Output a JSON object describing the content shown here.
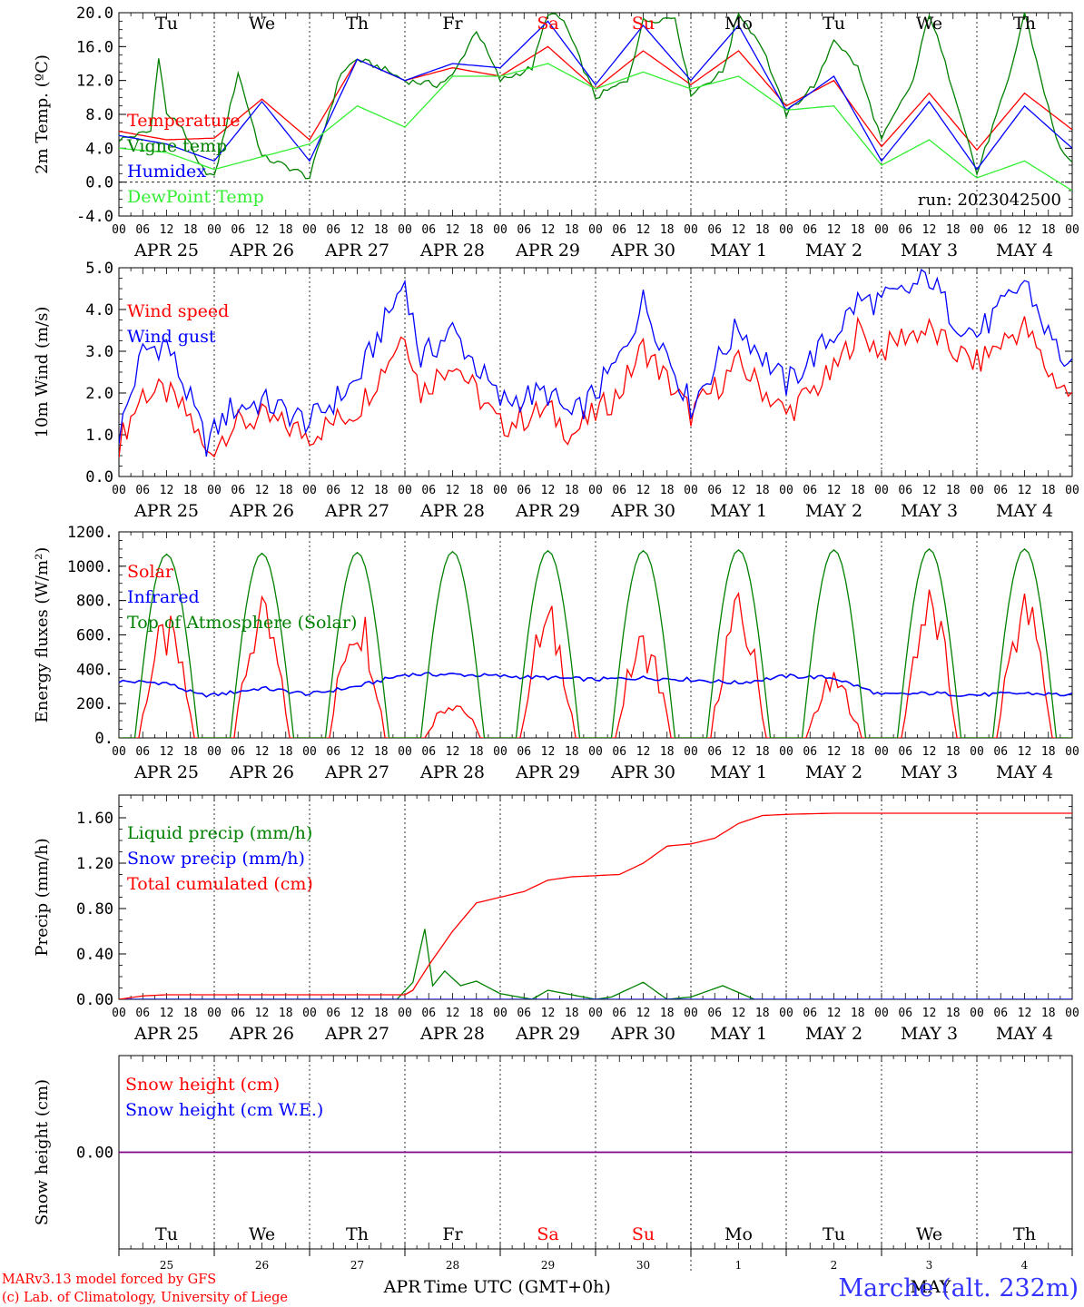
{
  "colors": {
    "red": "#ff0000",
    "green": "#008000",
    "blue": "#0000ff",
    "lime": "#33ee33",
    "purple": "#800080",
    "title": "#3333ff",
    "black": "#000000"
  },
  "days": [
    "APR 25",
    "APR 26",
    "APR 27",
    "APR 28",
    "APR 29",
    "APR 30",
    "MAY  1",
    "MAY  2",
    "MAY  3",
    "MAY  4"
  ],
  "weekdays": [
    {
      "label": "Tu",
      "color": "black"
    },
    {
      "label": "We",
      "color": "black"
    },
    {
      "label": "Th",
      "color": "black"
    },
    {
      "label": "Fr",
      "color": "black"
    },
    {
      "label": "Sa",
      "color": "red"
    },
    {
      "label": "Su",
      "color": "red"
    },
    {
      "label": "Mo",
      "color": "black"
    },
    {
      "label": "Tu",
      "color": "black"
    },
    {
      "label": "We",
      "color": "black"
    },
    {
      "label": "Th",
      "color": "black"
    }
  ],
  "hour_ticks": [
    "00",
    "06",
    "12",
    "18"
  ],
  "bottom_axis": {
    "day_numbers": [
      "25",
      "26",
      "27",
      "28",
      "29",
      "30",
      "1",
      "2",
      "3",
      "4"
    ],
    "month_labels": [
      "APR",
      "MAY"
    ],
    "xlabel": "Time UTC (GMT+0h)"
  },
  "footer": {
    "credit1": "MARv3.13 model forced by GFS",
    "credit2": "(c) Lab. of Climatology, University of Liege",
    "station": "Marche (alt. 232m)"
  },
  "chart_data": [
    {
      "type": "line",
      "ylabel": "2m Temp. (ºC)",
      "ylim": [
        -4,
        20
      ],
      "yticks": [
        "-4.0",
        "0.0",
        "4.0",
        "8.0",
        "12.0",
        "16.0",
        "20.0"
      ],
      "ytick_values": [
        -4,
        0,
        4,
        8,
        12,
        16,
        20
      ],
      "annotation": "run: 2023042500",
      "zero_line": true,
      "series": [
        {
          "name": "Temperature",
          "color": "red",
          "x_hours": [
            0,
            12,
            24,
            36,
            48,
            60,
            72,
            84,
            96,
            108,
            120,
            132,
            144,
            156,
            168,
            180,
            192,
            204,
            216,
            228,
            240
          ],
          "values": [
            6.0,
            5.0,
            5.2,
            9.8,
            5.0,
            14.5,
            12.0,
            13.5,
            12.5,
            16.0,
            11.0,
            15.5,
            11.5,
            15.5,
            9.0,
            12.0,
            4.2,
            10.5,
            3.8,
            10.5,
            6.2
          ]
        },
        {
          "name": "Vigne temp",
          "color": "green",
          "x_hours": [
            0,
            8,
            10,
            12,
            16,
            20,
            24,
            30,
            36,
            44,
            48,
            56,
            60,
            66,
            72,
            80,
            84,
            90,
            96,
            104,
            108,
            112,
            120,
            128,
            132,
            140,
            144,
            152,
            156,
            162,
            168,
            176,
            180,
            186,
            192,
            200,
            204,
            212,
            216,
            224,
            228,
            236,
            240
          ],
          "values": [
            5.0,
            6.0,
            15.0,
            8.0,
            6.5,
            2.0,
            0.5,
            13.0,
            3.0,
            1.5,
            0.5,
            13.0,
            14.5,
            13.5,
            12.0,
            11.5,
            12.5,
            18.0,
            12.0,
            13.5,
            20.0,
            19.0,
            10.0,
            12.0,
            19.0,
            19.5,
            10.5,
            13.0,
            20.0,
            16.0,
            8.0,
            12.0,
            17.0,
            13.5,
            5.0,
            12.0,
            20.0,
            8.0,
            1.0,
            12.0,
            20.0,
            5.0,
            2.0
          ]
        },
        {
          "name": "Humidex",
          "color": "blue",
          "x_hours": [
            0,
            12,
            24,
            36,
            48,
            60,
            72,
            84,
            96,
            108,
            120,
            132,
            144,
            156,
            168,
            180,
            192,
            204,
            216,
            228,
            240
          ],
          "values": [
            5.5,
            4.5,
            2.5,
            9.5,
            2.5,
            14.5,
            12.0,
            14.0,
            13.5,
            19.0,
            11.5,
            18.5,
            12.0,
            18.5,
            8.5,
            12.5,
            2.5,
            9.5,
            1.5,
            9.0,
            4.0
          ]
        },
        {
          "name": "DewPoint Temp",
          "color": "lime",
          "x_hours": [
            0,
            12,
            24,
            36,
            48,
            60,
            72,
            84,
            96,
            108,
            120,
            132,
            144,
            156,
            168,
            180,
            192,
            204,
            216,
            228,
            240
          ],
          "values": [
            4.0,
            3.5,
            1.5,
            3.0,
            4.5,
            9.0,
            6.5,
            12.5,
            12.5,
            14.0,
            11.0,
            13.0,
            11.0,
            12.5,
            8.5,
            9.0,
            2.0,
            5.0,
            0.5,
            2.5,
            -1.0
          ]
        }
      ]
    },
    {
      "type": "line",
      "ylabel": "10m Wind (m/s)",
      "ylim": [
        0,
        5
      ],
      "yticks": [
        "0.0",
        "1.0",
        "2.0",
        "3.0",
        "4.0",
        "5.0"
      ],
      "ytick_values": [
        0,
        1,
        2,
        3,
        4,
        5
      ],
      "series": [
        {
          "name": "Wind speed",
          "color": "red",
          "x_hours": [
            0,
            6,
            12,
            18,
            22,
            28,
            36,
            48,
            60,
            66,
            72,
            76,
            84,
            96,
            108,
            114,
            120,
            126,
            132,
            144,
            156,
            168,
            180,
            186,
            192,
            198,
            204,
            210,
            216,
            222,
            228,
            234,
            240
          ],
          "values": [
            0.8,
            2.0,
            2.0,
            1.4,
            0.5,
            1.2,
            1.4,
            1.0,
            1.6,
            2.5,
            3.5,
            2.0,
            2.8,
            1.2,
            1.6,
            1.0,
            1.5,
            2.0,
            3.1,
            1.5,
            2.7,
            1.5,
            2.5,
            3.5,
            3.0,
            3.4,
            3.5,
            3.0,
            2.7,
            3.2,
            3.6,
            2.5,
            1.9
          ]
        },
        {
          "name": "Wind gust",
          "color": "blue",
          "x_hours": [
            0,
            6,
            12,
            18,
            22,
            28,
            36,
            48,
            60,
            66,
            72,
            76,
            84,
            96,
            108,
            114,
            120,
            126,
            132,
            144,
            156,
            168,
            180,
            186,
            192,
            198,
            204,
            210,
            216,
            222,
            228,
            234,
            240
          ],
          "values": [
            1.0,
            3.0,
            3.2,
            1.8,
            0.8,
            1.6,
            1.8,
            1.3,
            2.3,
            3.5,
            4.7,
            2.8,
            3.5,
            1.8,
            2.0,
            1.4,
            2.0,
            2.8,
            4.2,
            1.7,
            3.6,
            2.2,
            3.4,
            4.2,
            4.2,
            4.4,
            4.8,
            3.8,
            3.4,
            4.0,
            4.7,
            3.4,
            2.5
          ]
        }
      ]
    },
    {
      "type": "line",
      "ylabel": "Energy fluxes (W/m²)",
      "ylim": [
        0,
        1200
      ],
      "yticks": [
        "0.",
        "200.",
        "400.",
        "600.",
        "800.",
        "1000.",
        "1200."
      ],
      "ytick_values": [
        0,
        200,
        400,
        600,
        800,
        1000,
        1200
      ],
      "series": [
        {
          "name": "Solar",
          "color": "red",
          "day_peaks": [
            680,
            770,
            790,
            240,
            750,
            610,
            800,
            360,
            850,
            840
          ]
        },
        {
          "name": "Infrared",
          "color": "blue",
          "x_hours": [
            0,
            12,
            20,
            24,
            36,
            48,
            60,
            72,
            84,
            96,
            108,
            120,
            132,
            144,
            156,
            168,
            180,
            192,
            204,
            216,
            228,
            240
          ],
          "values": [
            330,
            320,
            250,
            250,
            290,
            255,
            300,
            370,
            370,
            360,
            350,
            340,
            350,
            340,
            320,
            360,
            350,
            250,
            260,
            250,
            260,
            250
          ]
        },
        {
          "name": "Top of Atmosphere (Solar)",
          "color": "green",
          "day_peaks": [
            1070,
            1075,
            1080,
            1085,
            1090,
            1090,
            1095,
            1095,
            1100,
            1100
          ]
        }
      ]
    },
    {
      "type": "line",
      "ylabel": "Precip (mm/h)",
      "ylim": [
        0,
        1.8
      ],
      "yticks": [
        "0.00",
        "0.40",
        "0.80",
        "1.20",
        "1.60"
      ],
      "ytick_values": [
        0,
        0.4,
        0.8,
        1.2,
        1.6
      ],
      "series": [
        {
          "name": "Liquid precip (mm/h)",
          "color": "green",
          "x_hours": [
            0,
            70,
            74,
            77,
            79,
            82,
            86,
            90,
            96,
            104,
            108,
            120,
            124,
            132,
            138,
            144,
            152,
            160,
            168,
            240
          ],
          "values": [
            0,
            0,
            0.15,
            0.62,
            0.12,
            0.25,
            0.12,
            0.16,
            0.05,
            0.0,
            0.08,
            0.0,
            0.02,
            0.15,
            0.0,
            0.02,
            0.12,
            0.0,
            0.0,
            0.0
          ]
        },
        {
          "name": "Snow precip (mm/h)",
          "color": "blue",
          "x_hours": [
            0,
            240
          ],
          "values": [
            0,
            0
          ]
        },
        {
          "name": "Total cumulated (cm)",
          "color": "red",
          "x_hours": [
            0,
            6,
            12,
            24,
            48,
            72,
            74,
            78,
            84,
            90,
            96,
            102,
            108,
            114,
            120,
            126,
            132,
            138,
            144,
            150,
            156,
            162,
            168,
            180,
            240
          ],
          "values": [
            0,
            0.03,
            0.04,
            0.04,
            0.04,
            0.04,
            0.08,
            0.3,
            0.6,
            0.85,
            0.9,
            0.95,
            1.05,
            1.08,
            1.09,
            1.1,
            1.2,
            1.35,
            1.37,
            1.42,
            1.55,
            1.62,
            1.63,
            1.64,
            1.64
          ]
        }
      ]
    },
    {
      "type": "line",
      "ylabel": "Snow height (cm)",
      "ylim": [
        -1,
        1
      ],
      "yticks": [
        "0.00"
      ],
      "ytick_values": [
        0
      ],
      "series": [
        {
          "name": "Snow height (cm)",
          "color": "red",
          "x_hours": [
            0,
            240
          ],
          "values": [
            0,
            0
          ]
        },
        {
          "name": "Snow height (cm W.E.)",
          "color": "blue",
          "x_hours": [
            0,
            240
          ],
          "values": [
            0,
            0
          ]
        }
      ]
    }
  ]
}
